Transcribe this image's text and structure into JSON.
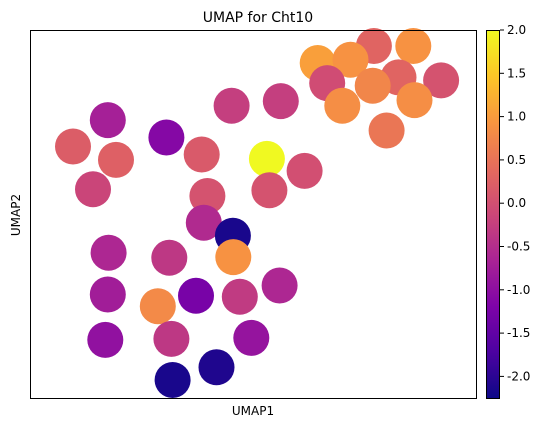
{
  "chart_data": {
    "type": "scatter",
    "title": "UMAP for Cht10",
    "xlabel": "UMAP1",
    "ylabel": "UMAP2",
    "xlim": [
      0,
      100
    ],
    "ylim": [
      0,
      100
    ],
    "show_axis_ticks": false,
    "grid": false,
    "colorbar": {
      "colormap": "plasma",
      "range": [
        -2.25,
        2.0
      ],
      "ticks": [
        "2.0",
        "1.5",
        "1.0",
        "0.5",
        "0.0",
        "-0.5",
        "-1.0",
        "-1.5",
        "-2.0"
      ],
      "tick_values": [
        2.0,
        1.5,
        1.0,
        0.5,
        0.0,
        -0.5,
        -1.0,
        -1.5,
        -2.0
      ],
      "position": "right"
    },
    "points": [
      {
        "x": 79.0,
        "y": 100.0,
        "value": 0.3
      },
      {
        "x": 88.6,
        "y": 100.0,
        "value": 0.9
      },
      {
        "x": 65.3,
        "y": 94.9,
        "value": 1.05
      },
      {
        "x": 73.3,
        "y": 95.9,
        "value": 0.9
      },
      {
        "x": 85.0,
        "y": 90.6,
        "value": 0.3
      },
      {
        "x": 95.4,
        "y": 89.7,
        "value": 0.05
      },
      {
        "x": 67.6,
        "y": 88.9,
        "value": -0.05
      },
      {
        "x": 78.7,
        "y": 88.1,
        "value": 0.75
      },
      {
        "x": 71.3,
        "y": 82.1,
        "value": 0.85
      },
      {
        "x": 88.9,
        "y": 83.8,
        "value": 0.85
      },
      {
        "x": 82.1,
        "y": 74.7,
        "value": 0.55
      },
      {
        "x": 56.3,
        "y": 83.5,
        "value": -0.25
      },
      {
        "x": 44.3,
        "y": 82.1,
        "value": -0.25
      },
      {
        "x": 14.1,
        "y": 77.8,
        "value": -0.7
      },
      {
        "x": 28.4,
        "y": 72.6,
        "value": -1.1
      },
      {
        "x": 5.6,
        "y": 69.9,
        "value": 0.2
      },
      {
        "x": 16.1,
        "y": 65.9,
        "value": 0.25
      },
      {
        "x": 37.0,
        "y": 67.5,
        "value": 0.15
      },
      {
        "x": 52.9,
        "y": 66.2,
        "value": 2.0
      },
      {
        "x": 62.1,
        "y": 62.6,
        "value": 0.0
      },
      {
        "x": 10.5,
        "y": 57.1,
        "value": -0.15
      },
      {
        "x": 38.4,
        "y": 55.1,
        "value": 0.05
      },
      {
        "x": 53.5,
        "y": 56.8,
        "value": 0.05
      },
      {
        "x": 37.5,
        "y": 47.1,
        "value": -0.55
      },
      {
        "x": 44.6,
        "y": 43.2,
        "value": -2.15
      },
      {
        "x": 14.3,
        "y": 38.1,
        "value": -0.6
      },
      {
        "x": 29.1,
        "y": 36.6,
        "value": -0.35
      },
      {
        "x": 44.7,
        "y": 36.8,
        "value": 0.9
      },
      {
        "x": 14.1,
        "y": 25.6,
        "value": -0.75
      },
      {
        "x": 35.6,
        "y": 25.2,
        "value": -1.25
      },
      {
        "x": 46.3,
        "y": 24.9,
        "value": -0.3
      },
      {
        "x": 56.0,
        "y": 28.3,
        "value": -0.6
      },
      {
        "x": 26.3,
        "y": 22.1,
        "value": 0.8
      },
      {
        "x": 13.5,
        "y": 12.0,
        "value": -0.95
      },
      {
        "x": 29.6,
        "y": 12.3,
        "value": -0.35
      },
      {
        "x": 49.1,
        "y": 12.6,
        "value": -0.9
      },
      {
        "x": 40.6,
        "y": 3.8,
        "value": -2.1
      },
      {
        "x": 29.9,
        "y": 0.0,
        "value": -2.15
      }
    ]
  }
}
